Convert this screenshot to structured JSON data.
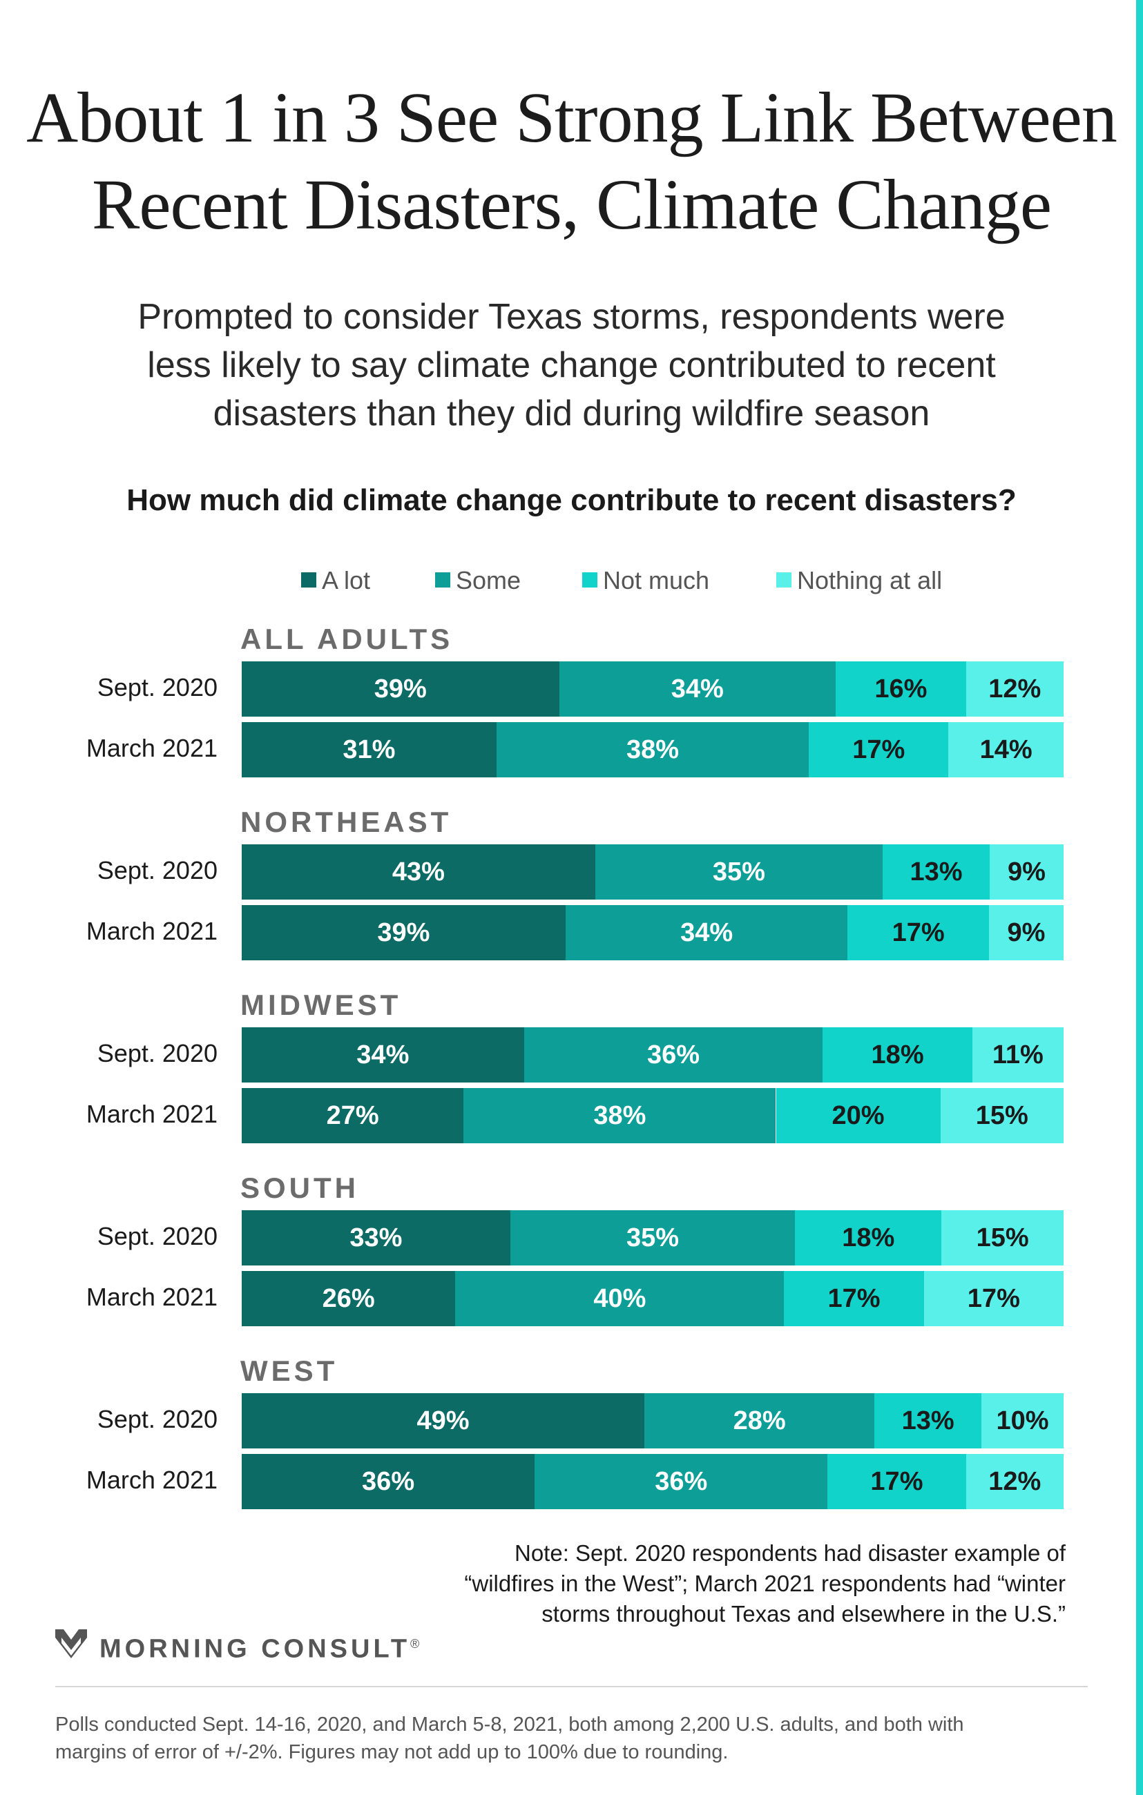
{
  "title_lines": [
    "About 1 in 3 See Strong Link Between",
    "Recent Disasters, Climate Change"
  ],
  "subtitle_lines": [
    "Prompted to consider Texas storms, respondents were",
    "less likely to say climate change contributed to recent",
    "disasters than they did during wildfire season"
  ],
  "question": "How much did climate change contribute to recent disasters?",
  "legend": [
    {
      "label": "A lot",
      "color": "#0d6b66"
    },
    {
      "label": "Some",
      "color": "#0d9e98"
    },
    {
      "label": "Not much",
      "color": "#12d3ca"
    },
    {
      "label": "Nothing at all",
      "color": "#5af0ea"
    }
  ],
  "chart_data": {
    "type": "bar",
    "orientation": "horizontal",
    "stacked": true,
    "series_names": [
      "A lot",
      "Some",
      "Not much",
      "Nothing at all"
    ],
    "groups": [
      {
        "name": "ALL ADULTS",
        "rows": [
          {
            "label": "Sept. 2020",
            "values": [
              39,
              34,
              16,
              12
            ]
          },
          {
            "label": "March 2021",
            "values": [
              31,
              38,
              17,
              14
            ]
          }
        ]
      },
      {
        "name": "NORTHEAST",
        "rows": [
          {
            "label": "Sept. 2020",
            "values": [
              43,
              35,
              13,
              9
            ]
          },
          {
            "label": "March 2021",
            "values": [
              39,
              34,
              17,
              9
            ]
          }
        ]
      },
      {
        "name": "MIDWEST",
        "rows": [
          {
            "label": "Sept. 2020",
            "values": [
              34,
              36,
              18,
              11
            ]
          },
          {
            "label": "March 2021",
            "values": [
              27,
              38,
              20,
              15
            ]
          }
        ]
      },
      {
        "name": "SOUTH",
        "rows": [
          {
            "label": "Sept. 2020",
            "values": [
              33,
              35,
              18,
              15
            ]
          },
          {
            "label": "March 2021",
            "values": [
              26,
              40,
              17,
              17
            ]
          }
        ]
      },
      {
        "name": "WEST",
        "rows": [
          {
            "label": "Sept. 2020",
            "values": [
              49,
              28,
              13,
              10
            ]
          },
          {
            "label": "March 2021",
            "values": [
              36,
              36,
              17,
              12
            ]
          }
        ]
      }
    ],
    "value_suffix": "%",
    "legend_position": "top",
    "grid": false
  },
  "note_lines": [
    "Note: Sept. 2020 respondents had disaster example of",
    "“wildfires in the West”; March 2021 respondents had “winter",
    "storms throughout Texas and elsewhere in the U.S.”"
  ],
  "brand": {
    "name": "MORNING CONSULT",
    "mark": "®",
    "logo_icon": "morning-consult-logo-icon"
  },
  "footer_lines": [
    "Polls conducted Sept. 14-16, 2020, and March 5-8, 2021, both among 2,200 U.S. adults, and both with",
    "margins of error of +/-2%. Figures may not add up to 100% due to rounding."
  ],
  "label_colors": {
    "dark": "#ffffff",
    "light": "#1a1a1a"
  }
}
